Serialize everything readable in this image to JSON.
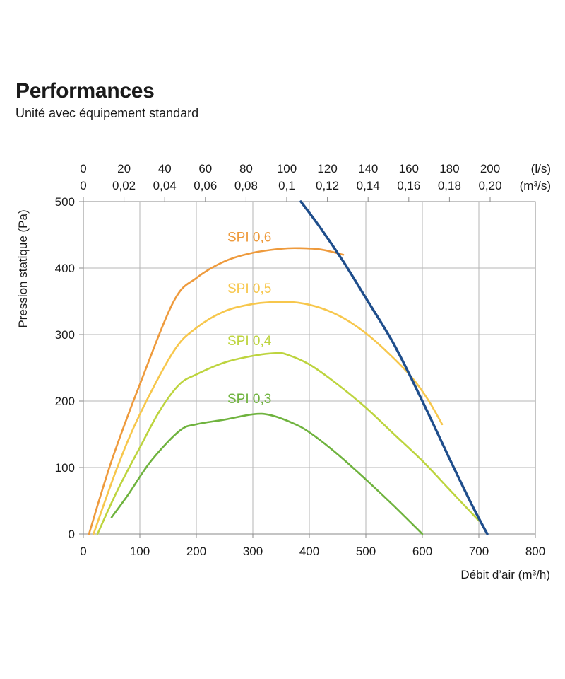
{
  "header": {
    "title": "Performances",
    "subtitle": "Unité avec équipement standard"
  },
  "chart_data": {
    "type": "line",
    "xlabel": "Débit d’air (m³/h)",
    "ylabel": "Pression statique (Pa)",
    "xlim": [
      0,
      800
    ],
    "ylim": [
      0,
      500
    ],
    "x_ticks": [
      0,
      100,
      200,
      300,
      400,
      500,
      600,
      700,
      800
    ],
    "y_ticks": [
      0,
      100,
      200,
      300,
      400,
      500
    ],
    "grid": true,
    "top_axis": {
      "ls_labels": [
        "0",
        "20",
        "40",
        "60",
        "80",
        "100",
        "120",
        "140",
        "160",
        "180",
        "200"
      ],
      "ls_unit": "(l/s)",
      "m3s_labels": [
        "0",
        "0,02",
        "0,04",
        "0,06",
        "0,08",
        "0,1",
        "0,12",
        "0,14",
        "0,16",
        "0,18",
        "0,20"
      ],
      "m3s_unit": "(m³/s)",
      "tick_values_m3h": [
        0,
        72,
        144,
        216,
        288,
        360,
        432,
        504,
        576,
        648,
        720
      ]
    },
    "series": [
      {
        "name": "SPI 0,6",
        "color": "#ee9a3c",
        "points": [
          [
            10,
            0
          ],
          [
            50,
            110
          ],
          [
            100,
            225
          ],
          [
            160,
            350
          ],
          [
            200,
            385
          ],
          [
            250,
            410
          ],
          [
            300,
            423
          ],
          [
            350,
            429
          ],
          [
            380,
            430
          ],
          [
            420,
            428
          ],
          [
            460,
            420
          ]
        ]
      },
      {
        "name": "SPI 0,5",
        "color": "#f7c74c",
        "points": [
          [
            18,
            0
          ],
          [
            60,
            100
          ],
          [
            100,
            180
          ],
          [
            160,
            275
          ],
          [
            200,
            310
          ],
          [
            250,
            335
          ],
          [
            300,
            346
          ],
          [
            340,
            349
          ],
          [
            380,
            348
          ],
          [
            420,
            340
          ],
          [
            460,
            325
          ],
          [
            500,
            302
          ],
          [
            540,
            272
          ],
          [
            580,
            237
          ],
          [
            610,
            202
          ],
          [
            635,
            165
          ]
        ]
      },
      {
        "name": "SPI 0,4",
        "color": "#bdd43e",
        "points": [
          [
            25,
            0
          ],
          [
            60,
            65
          ],
          [
            100,
            130
          ],
          [
            135,
            185
          ],
          [
            170,
            225
          ],
          [
            200,
            240
          ],
          [
            250,
            258
          ],
          [
            300,
            268
          ],
          [
            340,
            272
          ],
          [
            360,
            270
          ],
          [
            400,
            255
          ],
          [
            450,
            225
          ],
          [
            500,
            190
          ],
          [
            550,
            150
          ],
          [
            600,
            110
          ],
          [
            650,
            65
          ],
          [
            700,
            20
          ]
        ]
      },
      {
        "name": "SPI 0,3",
        "color": "#6fb33e",
        "points": [
          [
            50,
            25
          ],
          [
            80,
            60
          ],
          [
            120,
            110
          ],
          [
            170,
            155
          ],
          [
            200,
            165
          ],
          [
            250,
            172
          ],
          [
            300,
            180
          ],
          [
            330,
            179
          ],
          [
            370,
            167
          ],
          [
            400,
            153
          ],
          [
            450,
            120
          ],
          [
            500,
            82
          ],
          [
            550,
            42
          ],
          [
            600,
            0
          ]
        ]
      },
      {
        "name": "",
        "color": "#1f4e8c",
        "points": [
          [
            385,
            500
          ],
          [
            420,
            460
          ],
          [
            460,
            410
          ],
          [
            500,
            355
          ],
          [
            550,
            285
          ],
          [
            600,
            200
          ],
          [
            650,
            110
          ],
          [
            690,
            40
          ],
          [
            715,
            0
          ]
        ]
      }
    ],
    "series_label_positions": [
      [
        255,
        440
      ],
      [
        255,
        363
      ],
      [
        255,
        284
      ],
      [
        255,
        197
      ]
    ]
  }
}
